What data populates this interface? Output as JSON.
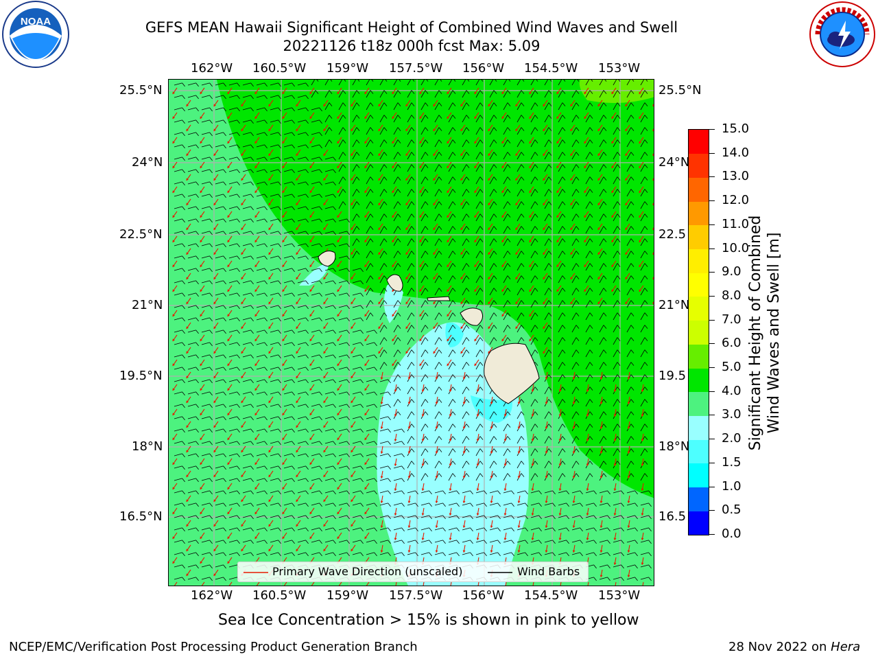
{
  "header": {
    "title_line1": "GEFS MEAN Hawaii Significant Height of Combined Wind Waves and Swell",
    "title_line2": "20221126 t18z 000h fcst   Max: 5.09"
  },
  "logos": {
    "noaa_text": "NOAA",
    "noaa_ring": "NATIONAL OCEANIC AND ATMOSPHERIC ADMINISTRATION · U.S. DEPARTMENT OF COMMERCE",
    "nws_ring": "NATIONAL WEATHER SERVICE"
  },
  "map": {
    "lon_labels": [
      "162°W",
      "160.5°W",
      "159°W",
      "157.5°W",
      "156°W",
      "154.5°W",
      "153°W"
    ],
    "lat_labels_left": [
      "25.5°N",
      "24°N",
      "22.5°N",
      "21°N",
      "19.5°N",
      "18°N",
      "16.5°N"
    ],
    "lat_labels_right": [
      "25.5°N",
      "24°N",
      "22.5",
      "21°N",
      "19.5",
      "18°N",
      "16.5"
    ],
    "colors": {
      "ocean_3_4": "#4df27f",
      "ocean_4_5": "#00e600",
      "ocean_5_6": "#66ee00",
      "ocean_2_3": "#99ffff",
      "ocean_1_5_2": "#4dffff",
      "land": "#f0ebd8",
      "wave_arrow": "#e61a00",
      "barb": "#000000",
      "grid": "#b0b0b0"
    }
  },
  "legend": {
    "wave_label": "Primary Wave Direction (unscaled)",
    "barb_label": "Wind Barbs"
  },
  "colorbar": {
    "title_line1": "Significant Height of Combined",
    "title_line2": "Wind Waves and Swell [m]",
    "ticks": [
      "0.0",
      "0.5",
      "1.0",
      "1.5",
      "2.0",
      "3.0",
      "4.0",
      "5.0",
      "6.0",
      "7.0",
      "8.0",
      "9.0",
      "10.0",
      "11.0",
      "12.0",
      "13.0",
      "14.0",
      "15.0"
    ],
    "colors": [
      "#0000ff",
      "#0066ff",
      "#00ffff",
      "#4dffff",
      "#99ffff",
      "#4df27f",
      "#00e600",
      "#66ee00",
      "#ccff00",
      "#e6ff00",
      "#ffff00",
      "#ffee00",
      "#ffcc00",
      "#ff9900",
      "#ff6600",
      "#ff3300",
      "#ff0000"
    ]
  },
  "note": "Sea Ice Concentration > 15% is shown in pink to yellow",
  "footer": {
    "left": "NCEP/EMC/Verification Post Processing Product Generation Branch",
    "right_prefix": "28 Nov 2022 on ",
    "right_host": "Hera"
  }
}
